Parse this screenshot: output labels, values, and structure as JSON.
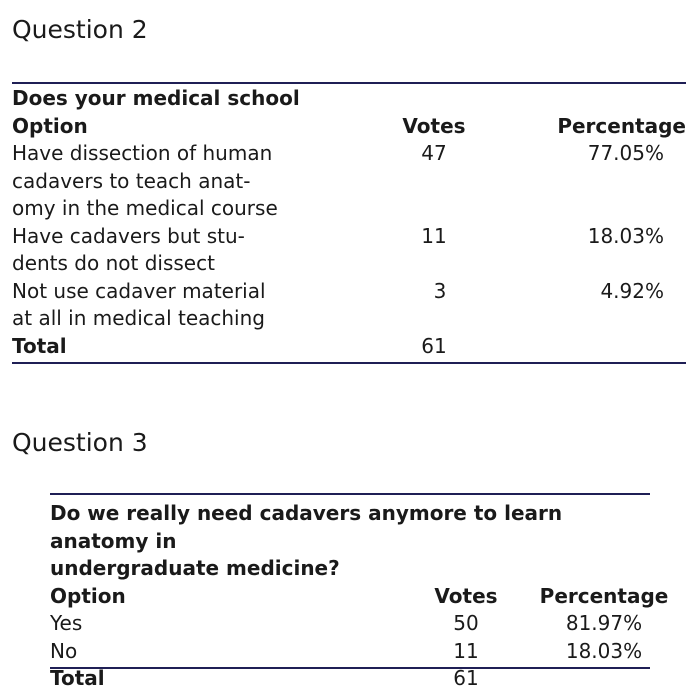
{
  "q2": {
    "heading": "Question 2",
    "question": "Does your medical school",
    "headers": {
      "option": "Option",
      "votes": "Votes",
      "percentage": "Percentage"
    },
    "rows": [
      {
        "option": [
          "Have dissection of human",
          "cadavers to teach anat-",
          "omy in the medical course"
        ],
        "votes": "47",
        "percentage": "77.05%"
      },
      {
        "option": [
          "Have cadavers but stu-",
          "dents do not dissect"
        ],
        "votes": "11",
        "percentage": "18.03%"
      },
      {
        "option": [
          "Not use cadaver material",
          "at all in medical teaching"
        ],
        "votes": "3",
        "percentage": "4.92%"
      }
    ],
    "total": {
      "label": "Total",
      "votes": "61"
    }
  },
  "q3": {
    "heading": "Question 3",
    "question": [
      "Do we really need cadavers anymore to learn anatomy in",
      "undergraduate medicine?"
    ],
    "headers": {
      "option": "Option",
      "votes": "Votes",
      "percentage": "Percentage"
    },
    "rows": [
      {
        "option": "Yes",
        "votes": "50",
        "percentage": "81.97%"
      },
      {
        "option": "No",
        "votes": "11",
        "percentage": "18.03%"
      }
    ],
    "total": {
      "label": "Total",
      "votes": "61"
    }
  },
  "colors": {
    "rule": "#1f1f55",
    "text": "#1a1a1a"
  }
}
